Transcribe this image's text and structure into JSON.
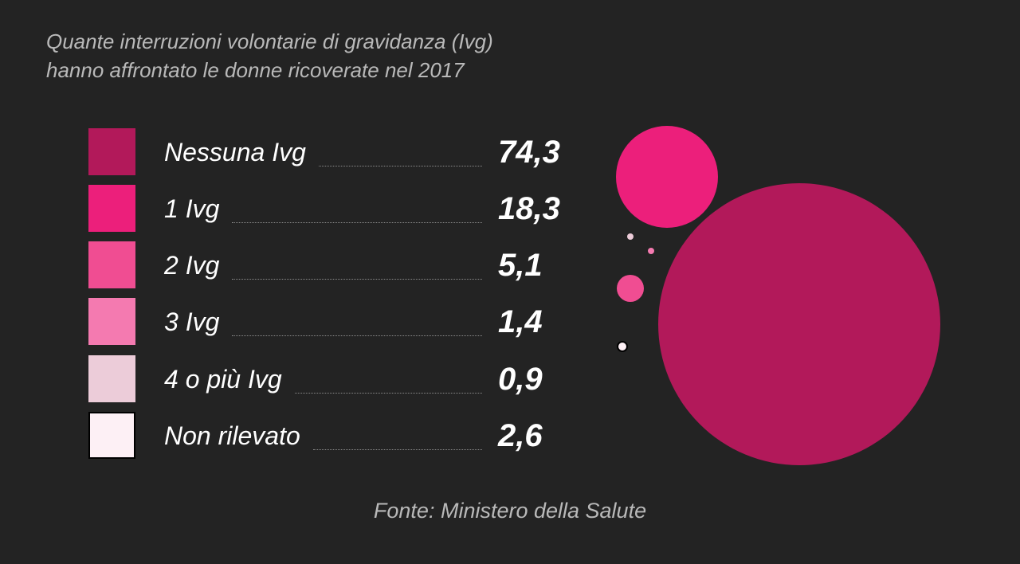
{
  "title_lines": [
    "Quante interruzioni volontarie di gravidanza (Ivg)",
    "hanno affrontato le donne ricoverate nel 2017"
  ],
  "source": "Fonte: Ministero della Salute",
  "chart_data": {
    "type": "bubble",
    "title": "Quante interruzioni volontarie di gravidanza (Ivg) hanno affrontato le donne ricoverate nel 2017",
    "categories": [
      "Nessuna Ivg",
      "1 Ivg",
      "2 Ivg",
      "3 Ivg",
      "4 o più Ivg",
      "Non rilevato"
    ],
    "values": [
      74.3,
      18.3,
      5.1,
      1.4,
      0.9,
      2.6
    ],
    "value_labels": [
      "74,3",
      "18,3",
      "5,1",
      "1,4",
      "0,9",
      "2,6"
    ],
    "colors": [
      "#b2195a",
      "#ec1f7b",
      "#f04d92",
      "#f47ab0",
      "#ecccd9",
      "#fdf0f5"
    ],
    "legend": "left"
  }
}
